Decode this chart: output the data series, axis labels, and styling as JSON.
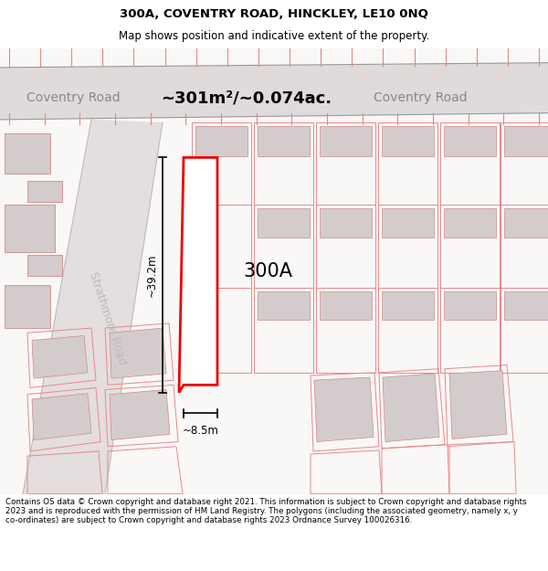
{
  "title_line1": "300A, COVENTRY ROAD, HINCKLEY, LE10 0NQ",
  "title_line2": "Map shows position and indicative extent of the property.",
  "area_label": "~301m²/~0.074ac.",
  "property_label": "300A",
  "dim_height": "~39.2m",
  "dim_width": "~8.5m",
  "road_label_left": "Coventry Road",
  "road_label_right": "Coventry Road",
  "road_label_diagonal": "Strathmore Road",
  "footer_text": "Contains OS data © Crown copyright and database right 2021. This information is subject to Crown copyright and database rights 2023 and is reproduced with the permission of HM Land Registry. The polygons (including the associated geometry, namely x, y co-ordinates) are subject to Crown copyright and database rights 2023 Ordnance Survey 100026316.",
  "map_bg": "#f9f6f6",
  "road_fill": "#e4dede",
  "plot_line": "#e88888",
  "building_fill": "#d4cccc",
  "building_edge": "#d08888",
  "highlight_color": "#ee0000",
  "highlight_fill": "#ffffff",
  "footer_bg": "#ffffff",
  "title_bg": "#ffffff"
}
